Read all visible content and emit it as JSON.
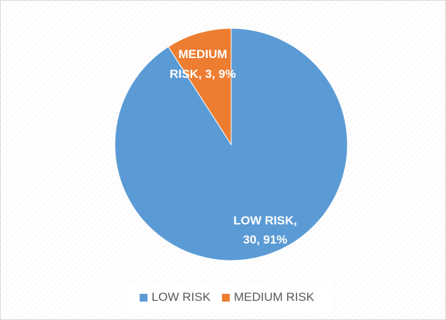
{
  "chart_data": {
    "type": "pie",
    "title": "",
    "categories": [
      "LOW RISK",
      "MEDIUM RISK"
    ],
    "values": [
      30,
      3
    ],
    "percentages": [
      "91%",
      "9%"
    ],
    "colors": [
      "#5b9bd5",
      "#ed7d31"
    ],
    "data_labels": [
      [
        "LOW RISK,",
        "30, 91%"
      ],
      [
        "MEDIUM",
        "RISK, 3, 9%"
      ]
    ],
    "legend_position": "bottom",
    "start_angle_deg": 0,
    "direction": "clockwise"
  }
}
